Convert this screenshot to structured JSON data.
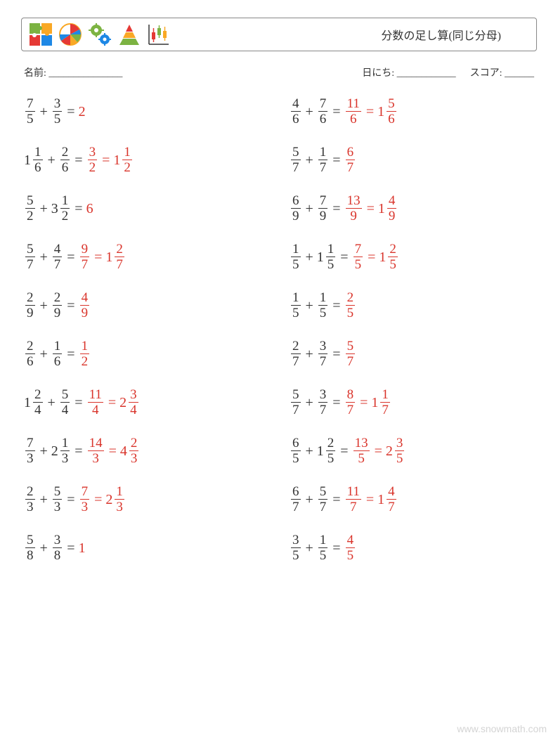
{
  "header": {
    "title": "分数の足し算(同じ分母)"
  },
  "meta": {
    "name_label": "名前: _______________",
    "date_label": "日にち: ____________",
    "score_label": "スコア: ______"
  },
  "colors": {
    "answer": "#d9342b",
    "text": "#333333"
  },
  "columns": [
    [
      {
        "a": {
          "n": 7,
          "d": 5
        },
        "b": {
          "n": 3,
          "d": 5
        },
        "ans": [
          {
            "w": 2
          }
        ]
      },
      {
        "a": {
          "w": 1,
          "n": 1,
          "d": 6
        },
        "b": {
          "n": 2,
          "d": 6
        },
        "ans": [
          {
            "n": 3,
            "d": 2
          },
          {
            "w": 1,
            "n": 1,
            "d": 2
          }
        ]
      },
      {
        "a": {
          "n": 5,
          "d": 2
        },
        "b": {
          "w": 3,
          "n": 1,
          "d": 2
        },
        "ans": [
          {
            "w": 6
          }
        ]
      },
      {
        "a": {
          "n": 5,
          "d": 7
        },
        "b": {
          "n": 4,
          "d": 7
        },
        "ans": [
          {
            "n": 9,
            "d": 7
          },
          {
            "w": 1,
            "n": 2,
            "d": 7
          }
        ]
      },
      {
        "a": {
          "n": 2,
          "d": 9
        },
        "b": {
          "n": 2,
          "d": 9
        },
        "ans": [
          {
            "n": 4,
            "d": 9
          }
        ]
      },
      {
        "a": {
          "n": 2,
          "d": 6
        },
        "b": {
          "n": 1,
          "d": 6
        },
        "ans": [
          {
            "n": 1,
            "d": 2
          }
        ]
      },
      {
        "a": {
          "w": 1,
          "n": 2,
          "d": 4
        },
        "b": {
          "n": 5,
          "d": 4
        },
        "ans": [
          {
            "n": 11,
            "d": 4
          },
          {
            "w": 2,
            "n": 3,
            "d": 4
          }
        ]
      },
      {
        "a": {
          "n": 7,
          "d": 3
        },
        "b": {
          "w": 2,
          "n": 1,
          "d": 3
        },
        "ans": [
          {
            "n": 14,
            "d": 3
          },
          {
            "w": 4,
            "n": 2,
            "d": 3
          }
        ]
      },
      {
        "a": {
          "n": 2,
          "d": 3
        },
        "b": {
          "n": 5,
          "d": 3
        },
        "ans": [
          {
            "n": 7,
            "d": 3
          },
          {
            "w": 2,
            "n": 1,
            "d": 3
          }
        ]
      },
      {
        "a": {
          "n": 5,
          "d": 8
        },
        "b": {
          "n": 3,
          "d": 8
        },
        "ans": [
          {
            "w": 1
          }
        ]
      }
    ],
    [
      {
        "a": {
          "n": 4,
          "d": 6
        },
        "b": {
          "n": 7,
          "d": 6
        },
        "ans": [
          {
            "n": 11,
            "d": 6
          },
          {
            "w": 1,
            "n": 5,
            "d": 6
          }
        ]
      },
      {
        "a": {
          "n": 5,
          "d": 7
        },
        "b": {
          "n": 1,
          "d": 7
        },
        "ans": [
          {
            "n": 6,
            "d": 7
          }
        ]
      },
      {
        "a": {
          "n": 6,
          "d": 9
        },
        "b": {
          "n": 7,
          "d": 9
        },
        "ans": [
          {
            "n": 13,
            "d": 9
          },
          {
            "w": 1,
            "n": 4,
            "d": 9
          }
        ]
      },
      {
        "a": {
          "n": 1,
          "d": 5
        },
        "b": {
          "w": 1,
          "n": 1,
          "d": 5
        },
        "ans": [
          {
            "n": 7,
            "d": 5
          },
          {
            "w": 1,
            "n": 2,
            "d": 5
          }
        ]
      },
      {
        "a": {
          "n": 1,
          "d": 5
        },
        "b": {
          "n": 1,
          "d": 5
        },
        "ans": [
          {
            "n": 2,
            "d": 5
          }
        ]
      },
      {
        "a": {
          "n": 2,
          "d": 7
        },
        "b": {
          "n": 3,
          "d": 7
        },
        "ans": [
          {
            "n": 5,
            "d": 7
          }
        ]
      },
      {
        "a": {
          "n": 5,
          "d": 7
        },
        "b": {
          "n": 3,
          "d": 7
        },
        "ans": [
          {
            "n": 8,
            "d": 7
          },
          {
            "w": 1,
            "n": 1,
            "d": 7
          }
        ]
      },
      {
        "a": {
          "n": 6,
          "d": 5
        },
        "b": {
          "w": 1,
          "n": 2,
          "d": 5
        },
        "ans": [
          {
            "n": 13,
            "d": 5
          },
          {
            "w": 2,
            "n": 3,
            "d": 5
          }
        ]
      },
      {
        "a": {
          "n": 6,
          "d": 7
        },
        "b": {
          "n": 5,
          "d": 7
        },
        "ans": [
          {
            "n": 11,
            "d": 7
          },
          {
            "w": 1,
            "n": 4,
            "d": 7
          }
        ]
      },
      {
        "a": {
          "n": 3,
          "d": 5
        },
        "b": {
          "n": 1,
          "d": 5
        },
        "ans": [
          {
            "n": 4,
            "d": 5
          }
        ]
      }
    ]
  ],
  "watermark": "www.snowmath.com"
}
